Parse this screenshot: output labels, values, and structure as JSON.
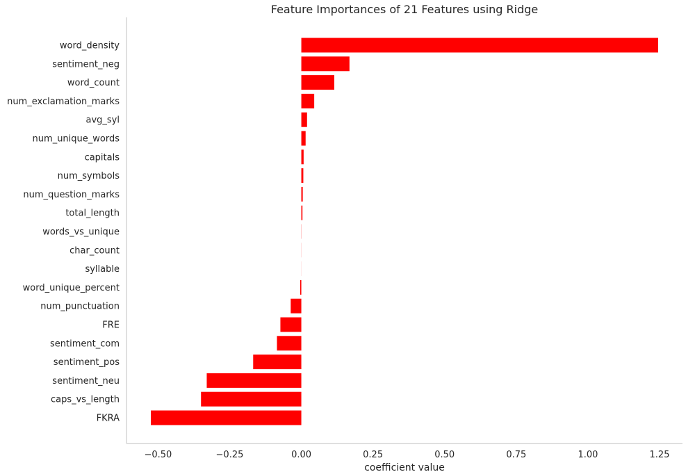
{
  "chart_data": {
    "type": "bar",
    "orientation": "horizontal",
    "title": "Feature Importances of 21 Features using Ridge",
    "xlabel": "coefficient value",
    "ylabel": "",
    "bar_color": "#ff0000",
    "xlim": [
      -0.61,
      1.33
    ],
    "xticks": [
      -0.5,
      -0.25,
      0.0,
      0.25,
      0.5,
      0.75,
      1.0,
      1.25
    ],
    "xtick_labels": [
      "−0.50",
      "−0.25",
      "0.00",
      "0.25",
      "0.50",
      "0.75",
      "1.00",
      "1.25"
    ],
    "grid": false,
    "categories": [
      "word_density",
      "sentiment_neg",
      "word_count",
      "num_exclamation_marks",
      "avg_syl",
      "num_unique_words",
      "capitals",
      "num_symbols",
      "num_question_marks",
      "total_length",
      "words_vs_unique",
      "char_count",
      "syllable",
      "word_unique_percent",
      "num_punctuation",
      "FRE",
      "sentiment_com",
      "sentiment_pos",
      "sentiment_neu",
      "caps_vs_length",
      "FKRA"
    ],
    "values": [
      1.245,
      0.168,
      0.115,
      0.045,
      0.02,
      0.015,
      0.008,
      0.007,
      0.005,
      0.004,
      0.0005,
      0.0003,
      0.0002,
      -0.004,
      -0.037,
      -0.073,
      -0.085,
      -0.168,
      -0.33,
      -0.35,
      -0.525
    ]
  }
}
